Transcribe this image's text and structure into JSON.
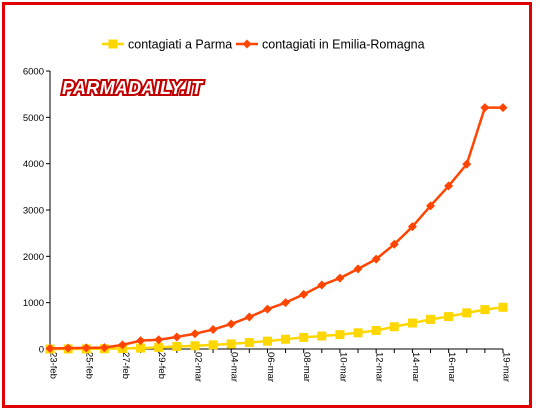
{
  "watermark": "PARMADAILY.IT",
  "chart_data": {
    "type": "line",
    "title": "",
    "xlabel": "",
    "ylabel": "",
    "ylim": [
      0,
      6000
    ],
    "yticks": [
      0,
      1000,
      2000,
      3000,
      4000,
      5000,
      6000
    ],
    "grid": false,
    "legend_position": "top",
    "categories": [
      "23-feb",
      "24-feb",
      "25-feb",
      "26-feb",
      "27-feb",
      "28-feb",
      "29-feb",
      "01-mar",
      "02-mar",
      "03-mar",
      "04-mar",
      "05-mar",
      "06-mar",
      "07-mar",
      "08-mar",
      "09-mar",
      "10-mar",
      "11-mar",
      "12-mar",
      "13-mar",
      "14-mar",
      "15-mar",
      "16-mar",
      "17-mar",
      "18-mar",
      "19-mar"
    ],
    "tick_labels": [
      "23-feb",
      "25-feb",
      "27-feb",
      "29-feb",
      "02-mar",
      "04-mar",
      "06-mar",
      "08-mar",
      "10-mar",
      "12-mar",
      "14-mar",
      "16-mar",
      "19-mar"
    ],
    "series": [
      {
        "name": "contagiati a Parma",
        "color": "#ffd700",
        "marker": "square",
        "values": [
          0,
          1,
          2,
          5,
          10,
          20,
          35,
          55,
          70,
          90,
          110,
          140,
          170,
          210,
          250,
          280,
          310,
          350,
          400,
          480,
          560,
          640,
          700,
          780,
          850,
          900
        ]
      },
      {
        "name": "contagiati in Emilia-Romagna",
        "color": "#ff4500",
        "marker": "diamond",
        "values": [
          10,
          20,
          25,
          30,
          90,
          180,
          200,
          260,
          330,
          420,
          540,
          690,
          860,
          1000,
          1180,
          1380,
          1530,
          1730,
          1940,
          2260,
          2640,
          3090,
          3520,
          3990,
          5210,
          5210
        ]
      }
    ]
  }
}
